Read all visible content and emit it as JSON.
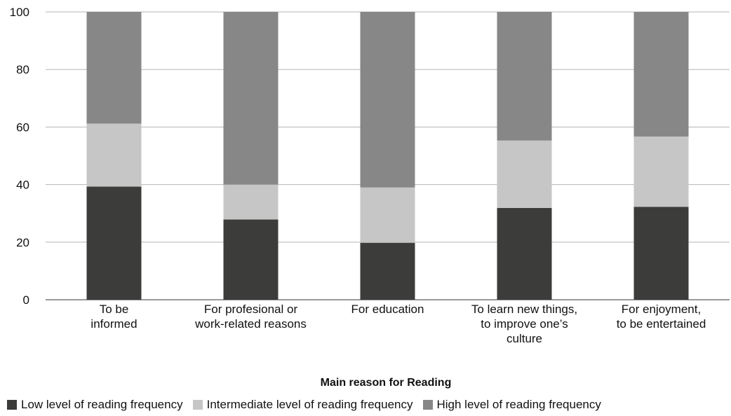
{
  "chart_data": {
    "type": "bar",
    "stacked": true,
    "categories": [
      [
        "To be",
        "informed"
      ],
      [
        "For profesional or",
        "work-related reasons"
      ],
      [
        "For education"
      ],
      [
        "To learn new things,",
        "to improve one’s",
        "culture"
      ],
      [
        "For enjoyment,",
        "to be entertained"
      ]
    ],
    "series": [
      {
        "name": "Low level of reading frequency",
        "color": "#3c3c3b",
        "values": [
          39.3,
          27.9,
          19.8,
          31.9,
          32.3
        ]
      },
      {
        "name": "Intermediate level of reading frequency",
        "color": "#c6c6c6",
        "values": [
          21.9,
          12.1,
          19.2,
          23.4,
          24.4
        ]
      },
      {
        "name": "High level of reading frequency",
        "color": "#878787",
        "values": [
          38.8,
          60.0,
          61.0,
          44.7,
          43.3
        ]
      }
    ],
    "xlabel": "Main reason for Reading",
    "ylabel": "",
    "ylim": [
      0,
      100
    ],
    "yticks": [
      0,
      20,
      40,
      60,
      80,
      100
    ],
    "grid": true,
    "legend_position": "bottom"
  }
}
